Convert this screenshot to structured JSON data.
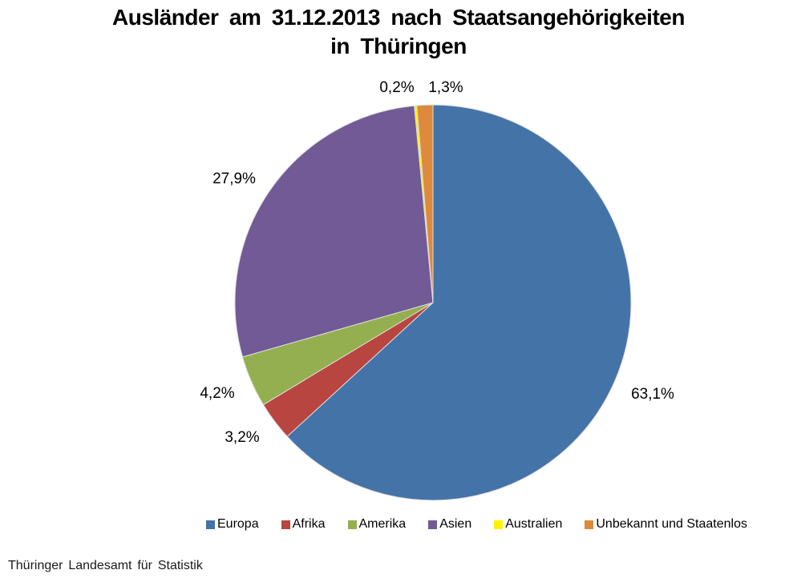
{
  "header": {
    "line1": "Ausländer am 31.12.2013 nach Staatsangehörigkeiten",
    "line2": "in Thüringen"
  },
  "chart_data": {
    "type": "pie",
    "title": "Ausländer am 31.12.2013 nach Staatsangehörigkeiten in Thüringen",
    "direction": "clockwise",
    "start_angle_deg": 0,
    "legend_position": "bottom",
    "source": "Thüringer Landesamt für Statistik",
    "slices": [
      {
        "label": "Europa",
        "value_pct": 63.1,
        "display": "63,1%",
        "color": "#4473A8"
      },
      {
        "label": "Afrika",
        "value_pct": 3.2,
        "display": "3,2%",
        "color": "#B8453F"
      },
      {
        "label": "Amerika",
        "value_pct": 4.2,
        "display": "4,2%",
        "color": "#94AF50"
      },
      {
        "label": "Asien",
        "value_pct": 27.9,
        "display": "27,9%",
        "color": "#715A96"
      },
      {
        "label": "Australien",
        "value_pct": 0.2,
        "display": "0,2%",
        "color": "#FFF200"
      },
      {
        "label": "Unbekannt und Staatenlos",
        "value_pct": 1.3,
        "display": "1,3%",
        "color": "#DD8A3D"
      }
    ]
  }
}
